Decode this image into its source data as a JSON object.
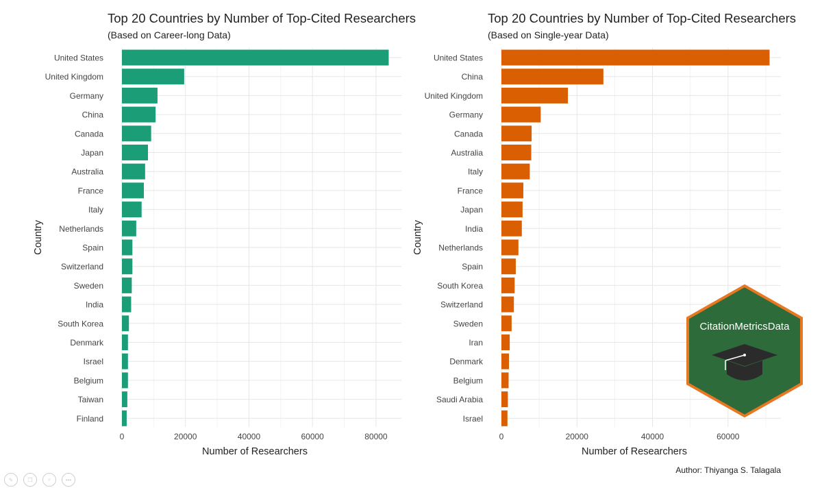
{
  "chart_data": [
    {
      "type": "bar",
      "orientation": "horizontal",
      "title": "Top 20 Countries by Number of Top-Cited Researchers",
      "subtitle": "(Based on Career-long Data)",
      "xlabel": "Number of Researchers",
      "ylabel": "Country",
      "color": "#1b9e77",
      "xlim": [
        0,
        88000
      ],
      "xticks": [
        0,
        20000,
        40000,
        60000,
        80000
      ],
      "grid": true,
      "categories": [
        "United States",
        "United Kingdom",
        "Germany",
        "China",
        "Canada",
        "Japan",
        "Australia",
        "France",
        "Italy",
        "Netherlands",
        "Spain",
        "Switzerland",
        "Sweden",
        "India",
        "South Korea",
        "Denmark",
        "Israel",
        "Belgium",
        "Taiwan",
        "Finland"
      ],
      "values": [
        84000,
        19600,
        11200,
        10600,
        9200,
        8200,
        7300,
        6900,
        6200,
        4500,
        3300,
        3300,
        3100,
        2900,
        2200,
        1900,
        1900,
        1900,
        1700,
        1500
      ]
    },
    {
      "type": "bar",
      "orientation": "horizontal",
      "title": "Top 20 Countries by Number of Top-Cited Researchers",
      "subtitle": "(Based on Single-year Data)",
      "xlabel": "Number of Researchers",
      "ylabel": "Country",
      "color": "#d95f02",
      "xlim": [
        0,
        74000
      ],
      "xticks": [
        0,
        20000,
        40000,
        60000
      ],
      "grid": true,
      "categories": [
        "United States",
        "China",
        "United Kingdom",
        "Germany",
        "Canada",
        "Australia",
        "Italy",
        "France",
        "Japan",
        "India",
        "Netherlands",
        "Spain",
        "South Korea",
        "Switzerland",
        "Sweden",
        "Iran",
        "Denmark",
        "Belgium",
        "Saudi Arabia",
        "Israel"
      ],
      "values": [
        71000,
        27000,
        17600,
        10400,
        8000,
        7900,
        7500,
        5800,
        5600,
        5400,
        4500,
        3800,
        3500,
        3300,
        2700,
        2200,
        2000,
        1900,
        1700,
        1600
      ]
    }
  ],
  "badge": {
    "text": "CitationMetricsData",
    "fill": "#2e6b3a",
    "border": "#e87722",
    "icon": "graduation-cap-icon"
  },
  "author": "Author: Thiyanga S. Talagala",
  "viewer_icons": [
    "pencil-icon",
    "copy-icon",
    "zoom-icon",
    "more-icon"
  ],
  "viewer_more": "•••"
}
